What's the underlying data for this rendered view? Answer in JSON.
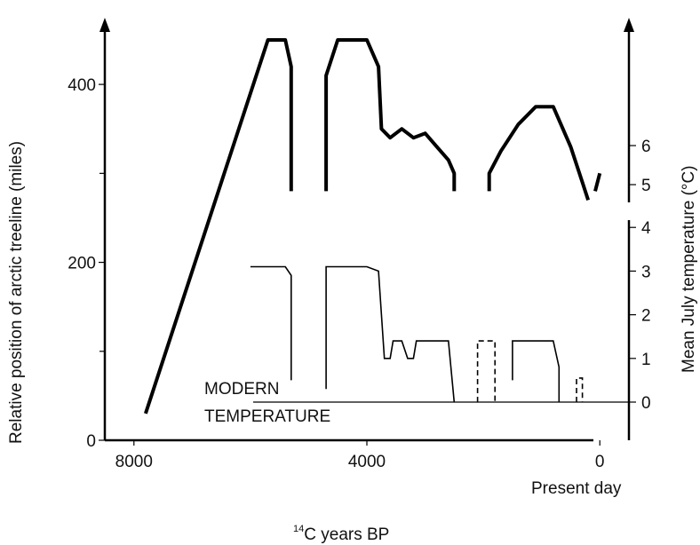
{
  "chart_data": {
    "type": "line",
    "title": "",
    "xlabel": "14C years BP",
    "xlabel_sup": "14",
    "xlabel_rest": "C years BP",
    "x_end_label": "Present day",
    "ylabel_left": "Relative position of arctic treeline (miles)",
    "ylabel_right": "Mean July temperature (°C)",
    "xlim": [
      8500,
      -500
    ],
    "ylim_left": [
      0,
      450
    ],
    "x_ticks": [
      {
        "value": 8000,
        "label": "8000"
      },
      {
        "value": 4000,
        "label": "4000"
      },
      {
        "value": 0,
        "label": "0"
      }
    ],
    "y_left_ticks": [
      {
        "value": 0,
        "label": "0"
      },
      {
        "value": 200,
        "label": "200"
      },
      {
        "value": 400,
        "label": "400"
      }
    ],
    "y_right_upper_ticks": [
      {
        "value": 5,
        "label": "5"
      },
      {
        "value": 6,
        "label": "6"
      }
    ],
    "y_right_lower_ticks": [
      {
        "value": 0,
        "label": "0"
      },
      {
        "value": 1,
        "label": "1"
      },
      {
        "value": 2,
        "label": "2"
      },
      {
        "value": 3,
        "label": "3"
      },
      {
        "value": 4,
        "label": "4"
      }
    ],
    "annotation_lines": [
      "MODERN",
      "TEMPERATURE"
    ],
    "series": [
      {
        "role": "treeline",
        "segments": [
          [
            [
              7800,
              30
            ],
            [
              5700,
              450
            ],
            [
              5400,
              450
            ],
            [
              5300,
              420
            ],
            [
              5300,
              280
            ]
          ],
          [
            [
              4700,
              280
            ],
            [
              4700,
              410
            ],
            [
              4500,
              450
            ],
            [
              4000,
              450
            ],
            [
              3800,
              420
            ],
            [
              3750,
              350
            ],
            [
              3600,
              340
            ],
            [
              3400,
              350
            ],
            [
              3200,
              340
            ],
            [
              3000,
              345
            ],
            [
              2800,
              330
            ],
            [
              2600,
              315
            ],
            [
              2500,
              300
            ],
            [
              2500,
              280
            ]
          ],
          [
            [
              1900,
              280
            ],
            [
              1900,
              300
            ],
            [
              1700,
              325
            ],
            [
              1400,
              355
            ],
            [
              1100,
              375
            ],
            [
              800,
              375
            ],
            [
              500,
              330
            ],
            [
              300,
              290
            ],
            [
              200,
              270
            ]
          ],
          [
            [
              80,
              280
            ],
            [
              0,
              300
            ]
          ]
        ]
      },
      {
        "role": "temperature",
        "solid_segments": [
          [
            [
              6000,
              3.1
            ],
            [
              5400,
              3.1
            ],
            [
              5300,
              2.9
            ],
            [
              5300,
              0.5
            ]
          ],
          [
            [
              4700,
              0.3
            ],
            [
              4700,
              3.1
            ],
            [
              4000,
              3.1
            ],
            [
              3800,
              3.0
            ],
            [
              3700,
              1.0
            ],
            [
              3600,
              1.0
            ],
            [
              3550,
              1.4
            ],
            [
              3400,
              1.4
            ],
            [
              3300,
              1.0
            ],
            [
              3200,
              1.0
            ],
            [
              3150,
              1.4
            ],
            [
              2600,
              1.4
            ],
            [
              2500,
              0.0
            ]
          ],
          [
            [
              1500,
              0.5
            ],
            [
              1500,
              1.4
            ],
            [
              800,
              1.4
            ],
            [
              700,
              0.8
            ],
            [
              700,
              0.0
            ]
          ]
        ],
        "dashed_segments": [
          [
            [
              2100,
              0.0
            ],
            [
              2100,
              1.4
            ],
            [
              1800,
              1.4
            ],
            [
              1800,
              0.0
            ]
          ],
          [
            [
              400,
              0.0
            ],
            [
              400,
              0.55
            ],
            [
              300,
              0.55
            ],
            [
              300,
              0.0
            ]
          ]
        ]
      }
    ],
    "modern_temperature": 0
  }
}
